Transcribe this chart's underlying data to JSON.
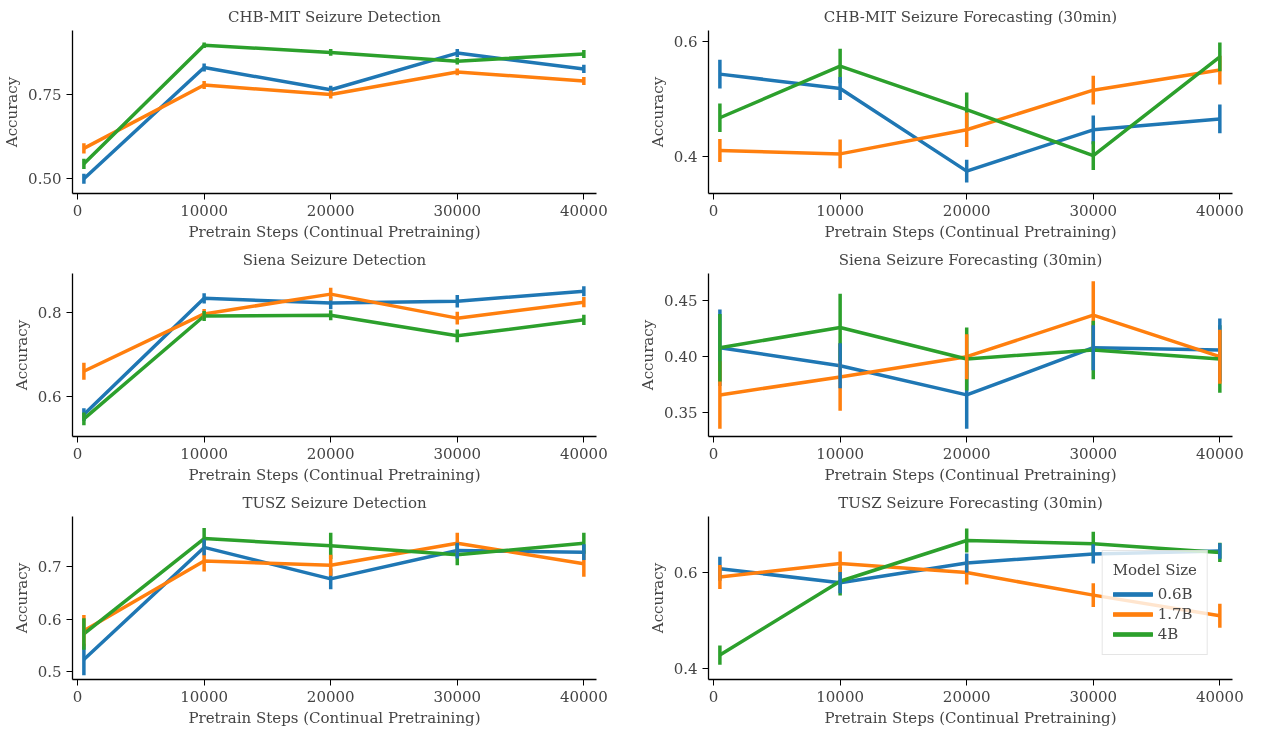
{
  "chart_data": [
    {
      "type": "line",
      "title": "CHB-MIT Seizure Detection",
      "xlabel": "Pretrain Steps (Continual Pretraining)",
      "ylabel": "Accuracy",
      "x": [
        500,
        10000,
        20000,
        30000,
        40000
      ],
      "xlim": [
        -400,
        41000
      ],
      "xticks": [
        0,
        10000,
        20000,
        30000,
        40000
      ],
      "ylim": [
        0.456,
        0.94
      ],
      "yticks": [
        {
          "value": 0.5,
          "label": "0.50"
        },
        {
          "value": 0.75,
          "label": "0.75"
        }
      ],
      "grid": false,
      "legend": false,
      "marker": "none",
      "line_style": "solid",
      "series": [
        {
          "color": "#1f77b4",
          "values": [
            0.5,
            0.83,
            0.764,
            0.873,
            0.826
          ],
          "errors": [
            0.015,
            0.012,
            0.012,
            0.012,
            0.012
          ]
        },
        {
          "color": "#ff7f0e",
          "values": [
            0.59,
            0.778,
            0.75,
            0.817,
            0.79
          ],
          "errors": [
            0.015,
            0.012,
            0.012,
            0.01,
            0.012
          ]
        },
        {
          "color": "#2ca02c",
          "values": [
            0.544,
            0.896,
            0.875,
            0.849,
            0.87
          ],
          "errors": [
            0.015,
            0.008,
            0.01,
            0.01,
            0.012
          ]
        }
      ]
    },
    {
      "type": "line",
      "title": "CHB-MIT Seizure Forecasting (30min)",
      "xlabel": "Pretrain Steps (Continual Pretraining)",
      "ylabel": "Accuracy",
      "x": [
        500,
        10000,
        20000,
        30000,
        40000
      ],
      "xlim": [
        -400,
        41000
      ],
      "xticks": [
        0,
        10000,
        20000,
        30000,
        40000
      ],
      "ylim": [
        0.335,
        0.619
      ],
      "yticks": [
        0.4,
        0.6
      ],
      "grid": false,
      "legend": false,
      "marker": "none",
      "line_style": "solid",
      "series": [
        {
          "color": "#1f77b4",
          "values": [
            0.543,
            0.518,
            0.374,
            0.446,
            0.465
          ],
          "errors": [
            0.025,
            0.02,
            0.02,
            0.025,
            0.025
          ]
        },
        {
          "color": "#ff7f0e",
          "values": [
            0.41,
            0.404,
            0.446,
            0.515,
            0.55
          ],
          "errors": [
            0.02,
            0.025,
            0.03,
            0.025,
            0.025
          ]
        },
        {
          "color": "#2ca02c",
          "values": [
            0.467,
            0.557,
            0.481,
            0.401,
            0.573
          ],
          "errors": [
            0.025,
            0.03,
            0.03,
            0.025,
            0.025
          ]
        }
      ]
    },
    {
      "type": "line",
      "title": "Siena Seizure Detection",
      "xlabel": "Pretrain Steps (Continual Pretraining)",
      "ylabel": "Accuracy",
      "x": [
        500,
        10000,
        20000,
        30000,
        40000
      ],
      "xlim": [
        -400,
        41000
      ],
      "xticks": [
        0,
        10000,
        20000,
        30000,
        40000
      ],
      "ylim": [
        0.506,
        0.893
      ],
      "yticks": [
        0.6,
        0.8
      ],
      "grid": false,
      "legend": false,
      "marker": "none",
      "line_style": "solid",
      "series": [
        {
          "color": "#1f77b4",
          "values": [
            0.558,
            0.834,
            0.823,
            0.827,
            0.851
          ],
          "errors": [
            0.015,
            0.012,
            0.015,
            0.015,
            0.012
          ]
        },
        {
          "color": "#ff7f0e",
          "values": [
            0.661,
            0.797,
            0.844,
            0.787,
            0.825
          ],
          "errors": [
            0.02,
            0.012,
            0.015,
            0.015,
            0.012
          ]
        },
        {
          "color": "#2ca02c",
          "values": [
            0.548,
            0.792,
            0.794,
            0.745,
            0.783
          ],
          "errors": [
            0.015,
            0.012,
            0.012,
            0.015,
            0.012
          ]
        }
      ]
    },
    {
      "type": "line",
      "title": "Siena Seizure Forecasting (30min)",
      "xlabel": "Pretrain Steps (Continual Pretraining)",
      "ylabel": "Accuracy",
      "x": [
        500,
        10000,
        20000,
        30000,
        40000
      ],
      "xlim": [
        -400,
        41000
      ],
      "xticks": [
        0,
        10000,
        20000,
        30000,
        40000
      ],
      "ylim": [
        0.329,
        0.474
      ],
      "yticks": [
        0.35,
        {
          "value": 0.4,
          "label": "0.40"
        },
        0.45
      ],
      "grid": false,
      "legend": false,
      "marker": "none",
      "line_style": "solid",
      "series": [
        {
          "color": "#1f77b4",
          "values": [
            0.408,
            0.392,
            0.366,
            0.408,
            0.406
          ],
          "errors": [
            0.034,
            0.02,
            0.03,
            0.02,
            0.028
          ]
        },
        {
          "color": "#ff7f0e",
          "values": [
            0.366,
            0.382,
            0.4,
            0.437,
            0.4
          ],
          "errors": [
            0.03,
            0.03,
            0.02,
            0.03,
            0.024
          ]
        },
        {
          "color": "#2ca02c",
          "values": [
            0.408,
            0.426,
            0.398,
            0.406,
            0.398
          ],
          "errors": [
            0.03,
            0.03,
            0.028,
            0.026,
            0.03
          ]
        }
      ]
    },
    {
      "type": "line",
      "title": "TUSZ Seizure Detection",
      "xlabel": "Pretrain Steps (Continual Pretraining)",
      "ylabel": "Accuracy",
      "x": [
        500,
        10000,
        20000,
        30000,
        40000
      ],
      "xlim": [
        -400,
        41000
      ],
      "xticks": [
        0,
        10000,
        20000,
        30000,
        40000
      ],
      "ylim": [
        0.485,
        0.796
      ],
      "yticks": [
        0.5,
        0.6,
        0.7
      ],
      "grid": false,
      "legend": false,
      "marker": "none",
      "line_style": "solid",
      "series": [
        {
          "color": "#1f77b4",
          "values": [
            0.523,
            0.737,
            0.677,
            0.731,
            0.728
          ],
          "errors": [
            0.03,
            0.015,
            0.02,
            0.015,
            0.015
          ]
        },
        {
          "color": "#ff7f0e",
          "values": [
            0.578,
            0.711,
            0.703,
            0.745,
            0.706
          ],
          "errors": [
            0.03,
            0.02,
            0.02,
            0.02,
            0.025
          ]
        },
        {
          "color": "#2ca02c",
          "values": [
            0.572,
            0.754,
            0.74,
            0.723,
            0.745
          ],
          "errors": [
            0.03,
            0.02,
            0.025,
            0.02,
            0.02
          ]
        }
      ]
    },
    {
      "type": "line",
      "title": "TUSZ Seizure Forecasting (30min)",
      "xlabel": "Pretrain Steps (Continual Pretraining)",
      "ylabel": "Accuracy",
      "legend_title": "Model Size",
      "x": [
        500,
        10000,
        20000,
        30000,
        40000
      ],
      "xlim": [
        -400,
        41000
      ],
      "xticks": [
        0,
        10000,
        20000,
        30000,
        40000
      ],
      "ylim": [
        0.377,
        0.717
      ],
      "yticks": [
        0.4,
        0.6
      ],
      "grid": false,
      "legend": "bottom right",
      "marker": "none",
      "line_style": "solid",
      "series": [
        {
          "name": "0.6B",
          "color": "#1f77b4",
          "values": [
            0.608,
            0.579,
            0.62,
            0.639,
            0.645
          ],
          "errors": [
            0.025,
            0.022,
            0.02,
            0.02,
            0.016
          ]
        },
        {
          "name": "1.7B",
          "color": "#ff7f0e",
          "values": [
            0.591,
            0.619,
            0.6,
            0.553,
            0.51
          ],
          "errors": [
            0.025,
            0.025,
            0.025,
            0.025,
            0.025
          ]
        },
        {
          "name": "4B",
          "color": "#2ca02c",
          "values": [
            0.428,
            0.582,
            0.667,
            0.66,
            0.642
          ],
          "errors": [
            0.02,
            0.03,
            0.025,
            0.025,
            0.02
          ]
        }
      ]
    }
  ]
}
